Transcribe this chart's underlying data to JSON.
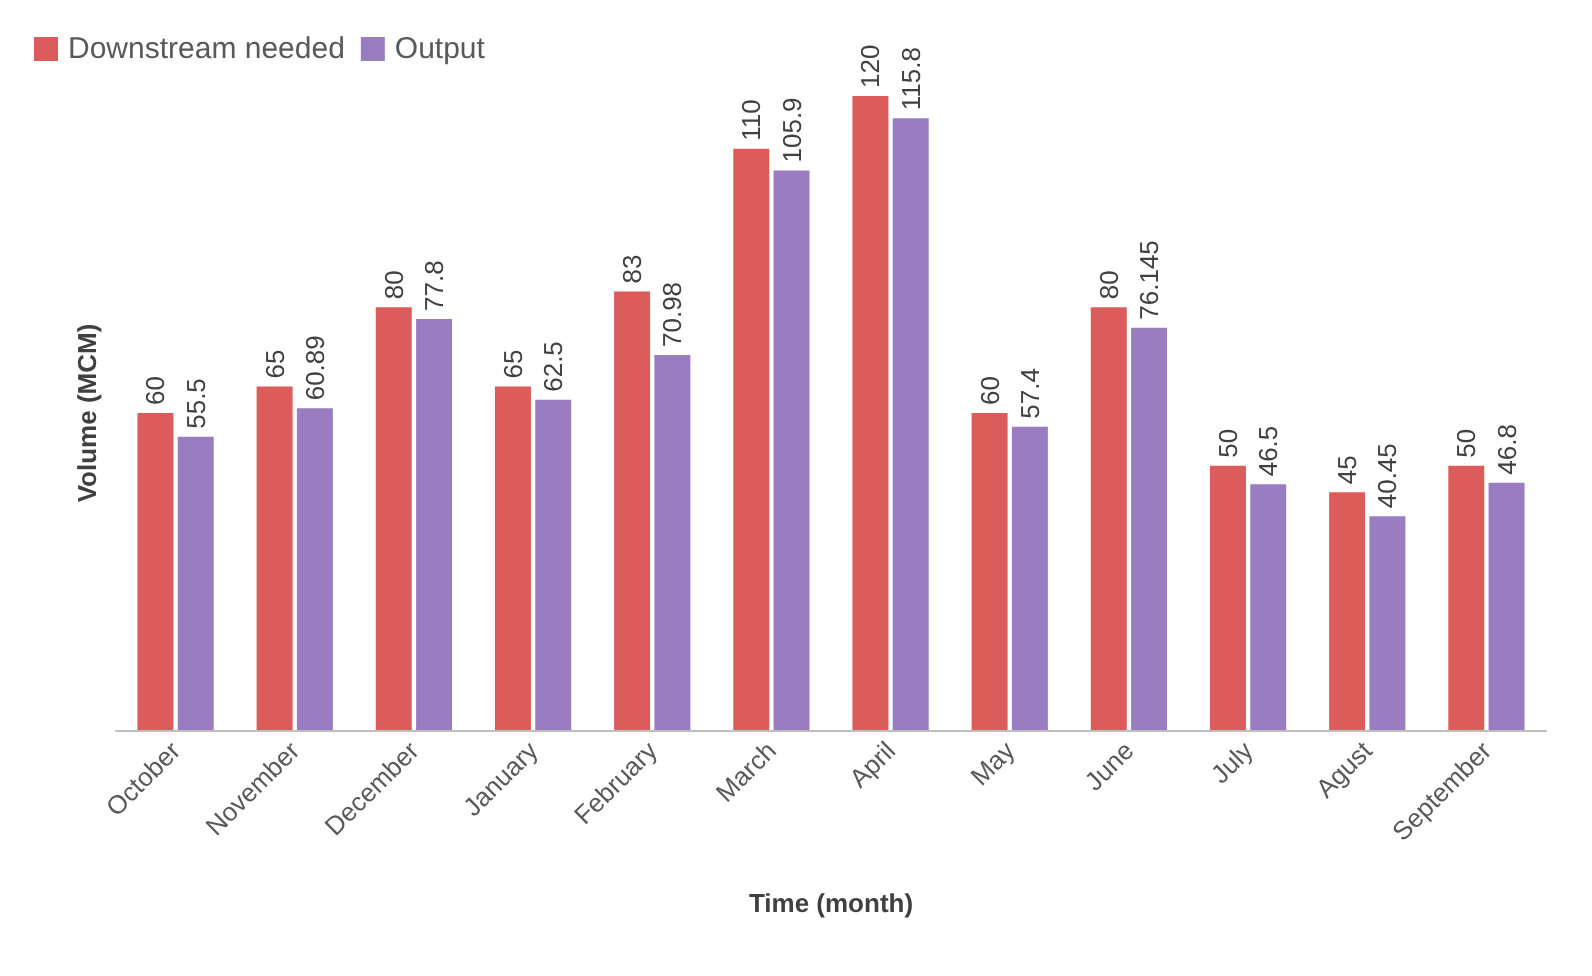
{
  "chart_data": {
    "type": "bar",
    "xlabel": "Time (month)",
    "ylabel": "Volume (MCM)",
    "categories": [
      "October",
      "November",
      "December",
      "January",
      "February",
      "March",
      "April",
      "May",
      "June",
      "July",
      "Agust",
      "September"
    ],
    "series": [
      {
        "name": "Downstream needed",
        "color": "#dc5c5c",
        "values": [
          60,
          65,
          80,
          65,
          83,
          110,
          120,
          60,
          80,
          50,
          45,
          50
        ]
      },
      {
        "name": "Output",
        "color": "#9a7cc0",
        "values": [
          55.5,
          60.89,
          77.8,
          62.5,
          70.98,
          105.9,
          115.8,
          57.4,
          76.145,
          46.5,
          40.45,
          46.8
        ]
      }
    ],
    "data_labels": true,
    "legend": "top left",
    "grid": false
  }
}
